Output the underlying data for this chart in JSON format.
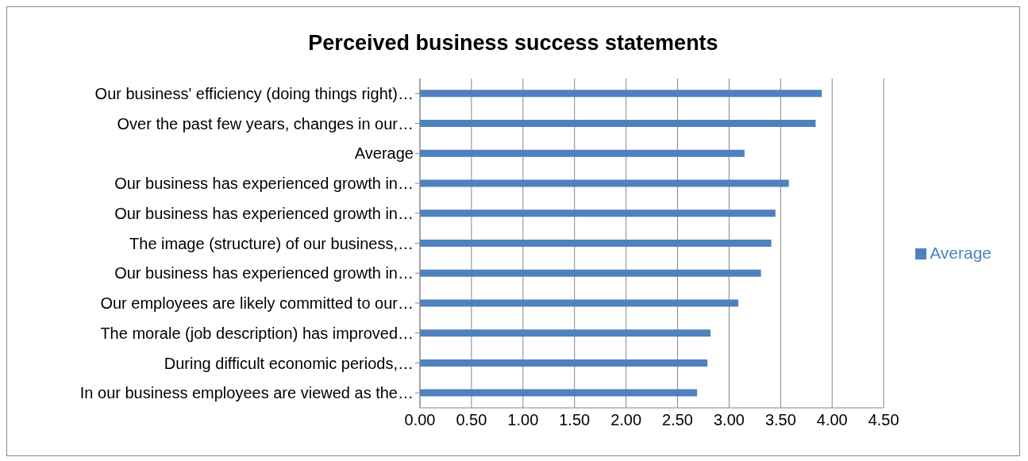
{
  "chart_data": {
    "type": "bar",
    "orientation": "horizontal",
    "title": "Perceived business success statements",
    "categories": [
      "Our business' efficiency (doing things right)…",
      "Over the past few years, changes in our…",
      "Average",
      "Our business has experienced growth in…",
      "Our business has experienced growth in…",
      "The image (structure) of our business,…",
      "Our business has experienced growth in…",
      "Our employees are likely committed to our…",
      "The morale (job description) has improved…",
      "During difficult economic periods,…",
      "In our business employees are viewed as the…"
    ],
    "series": [
      {
        "name": "Average",
        "color": "#4f81bd",
        "values": [
          3.9,
          3.84,
          3.15,
          3.58,
          3.45,
          3.41,
          3.31,
          3.09,
          2.82,
          2.79,
          2.69
        ]
      }
    ],
    "xlim": [
      0,
      4.5
    ],
    "xticks": [
      {
        "value": 0,
        "label": "0.00"
      },
      {
        "value": 0.5,
        "label": "0.50"
      },
      {
        "value": 1,
        "label": "1.00"
      },
      {
        "value": 1.5,
        "label": "1.50"
      },
      {
        "value": 2,
        "label": "2.00"
      },
      {
        "value": 2.5,
        "label": "2.50"
      },
      {
        "value": 3,
        "label": "3.00"
      },
      {
        "value": 3.5,
        "label": "3.50"
      },
      {
        "value": 4,
        "label": "4.00"
      },
      {
        "value": 4.5,
        "label": "4.50"
      }
    ],
    "grid": "x",
    "legend": "right"
  }
}
